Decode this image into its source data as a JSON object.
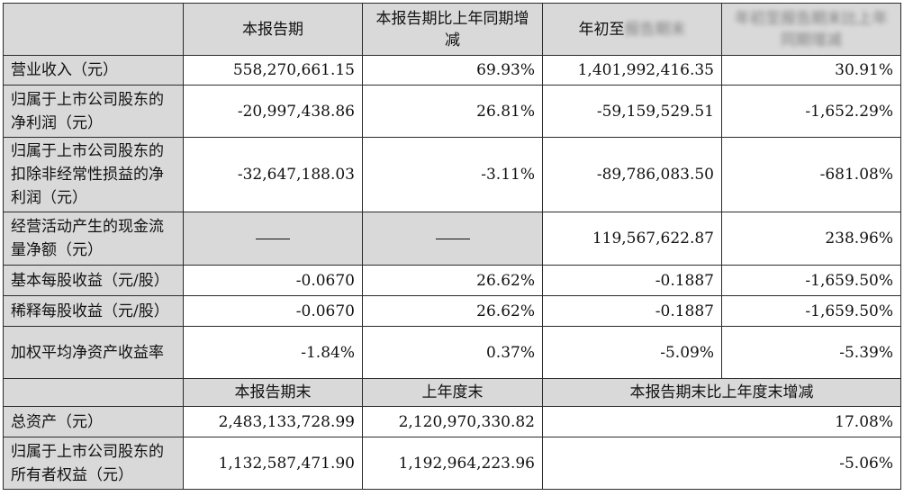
{
  "header": {
    "col1": "本报告期",
    "col2": "本报告期比上年同期增减",
    "col3_visible": "年初至",
    "col3_obscured": "报告期末",
    "col4_obscured": "年初至报告期末比上年同期增减"
  },
  "rows": [
    {
      "label": "营业收入（元）",
      "v1": "558,270,661.15",
      "v2": "69.93%",
      "v3": "1,401,992,416.35",
      "v4": "30.91%"
    },
    {
      "label": "归属于上市公司股东的净利润（元）",
      "v1": "-20,997,438.86",
      "v2": "26.81%",
      "v3": "-59,159,529.51",
      "v4": "-1,652.29%"
    },
    {
      "label": "归属于上市公司股东的扣除非经常性损益的净利润（元）",
      "v1": "-32,647,188.03",
      "v2": "-3.11%",
      "v3": "-89,786,083.50",
      "v4": "-681.08%"
    },
    {
      "label": "经营活动产生的现金流量净额（元）",
      "v1": "",
      "v2": "",
      "v3": "119,567,622.87",
      "v4": "238.96%"
    },
    {
      "label": "基本每股收益（元/股）",
      "v1": "-0.0670",
      "v2": "26.62%",
      "v3": "-0.1887",
      "v4": "-1,659.50%"
    },
    {
      "label": "稀释每股收益（元/股）",
      "v1": "-0.0670",
      "v2": "26.62%",
      "v3": "-0.1887",
      "v4": "-1,659.50%"
    },
    {
      "label": "加权平均净资产收益率",
      "v1": "-1.84%",
      "v2": "0.37%",
      "v3": "-5.09%",
      "v4": "-5.39%"
    }
  ],
  "header2": {
    "col1": "本报告期末",
    "col2": "上年度末",
    "col3": "本报告期末比上年度末增减"
  },
  "rows2": [
    {
      "label": "总资产（元）",
      "v1": "2,483,133,728.99",
      "v2": "2,120,970,330.82",
      "v3": "17.08%"
    },
    {
      "label": "归属于上市公司股东的所有者权益（元）",
      "v1": "1,132,587,471.90",
      "v2": "1,192,964,223.96",
      "v3": "-5.06%"
    }
  ]
}
